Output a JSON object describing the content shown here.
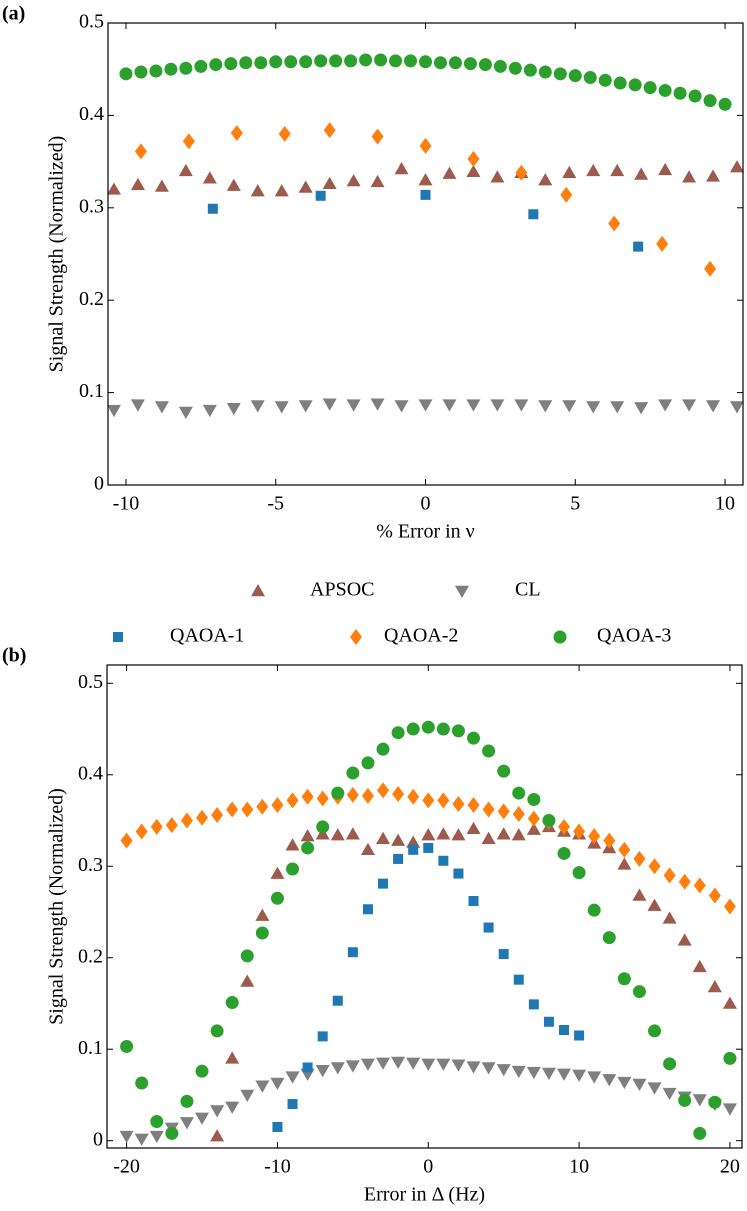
{
  "chart_data": [
    {
      "type": "scatter",
      "label": "(a)",
      "xlabel": "% Error in ν",
      "ylabel": "Signal Strength (Normalized)",
      "xlim": [
        -10.6,
        10.6
      ],
      "ylim": [
        0,
        0.5
      ],
      "xticks": [
        -10,
        -5,
        0,
        5,
        10
      ],
      "yticks": [
        0,
        0.1,
        0.2,
        0.3,
        0.4,
        0.5
      ],
      "series": [
        {
          "name": "APSOC",
          "color": "#9c5b4c",
          "marker": "triangle-up",
          "x": [
            -10.4,
            -9.6,
            -8.8,
            -8,
            -7.2,
            -6.4,
            -5.6,
            -4.8,
            -4,
            -3.2,
            -2.4,
            -1.6,
            -0.8,
            0,
            0.8,
            1.6,
            2.4,
            3.2,
            4,
            4.8,
            5.6,
            6.4,
            7.2,
            8,
            8.8,
            9.6,
            10.4
          ],
          "values": [
            0.32,
            0.325,
            0.323,
            0.34,
            0.332,
            0.324,
            0.318,
            0.318,
            0.322,
            0.326,
            0.329,
            0.328,
            0.342,
            0.33,
            0.337,
            0.339,
            0.333,
            0.338,
            0.33,
            0.338,
            0.34,
            0.34,
            0.336,
            0.341,
            0.333,
            0.334,
            0.344
          ]
        },
        {
          "name": "CL",
          "color": "#7f7f7f",
          "marker": "triangle-down",
          "x": [
            -10.4,
            -9.6,
            -8.8,
            -8,
            -7.2,
            -6.4,
            -5.6,
            -4.8,
            -4,
            -3.2,
            -2.4,
            -1.6,
            -0.8,
            0,
            0.8,
            1.6,
            2.4,
            3.2,
            4,
            4.8,
            5.6,
            6.4,
            7.2,
            8,
            8.8,
            9.6,
            10.4
          ],
          "values": [
            0.081,
            0.087,
            0.085,
            0.079,
            0.081,
            0.083,
            0.086,
            0.085,
            0.086,
            0.088,
            0.087,
            0.088,
            0.086,
            0.087,
            0.087,
            0.087,
            0.087,
            0.087,
            0.086,
            0.086,
            0.085,
            0.085,
            0.084,
            0.087,
            0.087,
            0.086,
            0.085
          ]
        },
        {
          "name": "QAOA-1",
          "color": "#1f77b4",
          "marker": "square",
          "x": [
            -7.1,
            -3.5,
            0,
            3.6,
            7.1
          ],
          "values": [
            0.299,
            0.313,
            0.314,
            0.293,
            0.258
          ]
        },
        {
          "name": "QAOA-2",
          "color": "#ff7f0e",
          "marker": "diamond",
          "x": [
            -9.5,
            -7.9,
            -6.3,
            -4.7,
            -3.2,
            -1.6,
            0,
            1.6,
            3.2,
            4.7,
            6.3,
            7.9,
            9.5
          ],
          "values": [
            0.361,
            0.372,
            0.381,
            0.38,
            0.384,
            0.377,
            0.367,
            0.353,
            0.338,
            0.314,
            0.283,
            0.261,
            0.234
          ]
        },
        {
          "name": "QAOA-3",
          "color": "#2ca02c",
          "marker": "circle",
          "x": [
            -10,
            -9.5,
            -9,
            -8.5,
            -8,
            -7.5,
            -7,
            -6.5,
            -6,
            -5.5,
            -5,
            -4.5,
            -4,
            -3.5,
            -3,
            -2.5,
            -2,
            -1.5,
            -1,
            -0.5,
            0,
            0.5,
            1,
            1.5,
            2,
            2.5,
            3,
            3.5,
            4,
            4.5,
            5,
            5.5,
            6,
            6.5,
            7,
            7.5,
            8,
            8.5,
            9,
            9.5,
            10
          ],
          "values": [
            0.445,
            0.447,
            0.448,
            0.45,
            0.451,
            0.453,
            0.455,
            0.456,
            0.457,
            0.457,
            0.458,
            0.458,
            0.458,
            0.459,
            0.459,
            0.459,
            0.46,
            0.46,
            0.459,
            0.459,
            0.458,
            0.457,
            0.457,
            0.456,
            0.455,
            0.453,
            0.451,
            0.449,
            0.447,
            0.445,
            0.443,
            0.441,
            0.438,
            0.435,
            0.433,
            0.43,
            0.427,
            0.424,
            0.421,
            0.416,
            0.412
          ]
        }
      ]
    },
    {
      "type": "scatter",
      "label": "(b)",
      "xlabel": "Error in Δ (Hz)",
      "ylabel": "Signal Strength (Normalized)",
      "xlim": [
        -21.3,
        20.8
      ],
      "ylim": [
        -0.008,
        0.52
      ],
      "xticks": [
        -20,
        -10,
        0,
        10,
        20
      ],
      "yticks": [
        0,
        0.1,
        0.2,
        0.3,
        0.4,
        0.5
      ],
      "series": [
        {
          "name": "APSOC",
          "color": "#9c5b4c",
          "marker": "triangle-up",
          "x": [
            -14,
            -13,
            -12,
            -11,
            -10,
            -9,
            -8,
            -7,
            -6,
            -5,
            -4,
            -3,
            -2,
            -1,
            0,
            1,
            2,
            3,
            4,
            5,
            6,
            7,
            8,
            9,
            10,
            11,
            12,
            13,
            14,
            15,
            16,
            17,
            18,
            19,
            20
          ],
          "values": [
            0.005,
            0.09,
            0.174,
            0.246,
            0.292,
            0.323,
            0.333,
            0.335,
            0.334,
            0.335,
            0.318,
            0.33,
            0.328,
            0.326,
            0.334,
            0.335,
            0.334,
            0.341,
            0.33,
            0.335,
            0.334,
            0.34,
            0.343,
            0.338,
            0.335,
            0.325,
            0.32,
            0.302,
            0.268,
            0.257,
            0.243,
            0.219,
            0.19,
            0.168,
            0.15
          ]
        },
        {
          "name": "CL",
          "color": "#7f7f7f",
          "marker": "triangle-down",
          "x": [
            -20,
            -19,
            -18,
            -17,
            -16,
            -15,
            -14,
            -13,
            -12,
            -11,
            -10,
            -9,
            -8,
            -7,
            -6,
            -5,
            -4,
            -3,
            -2,
            -1,
            0,
            1,
            2,
            3,
            4,
            5,
            6,
            7,
            8,
            9,
            10,
            11,
            12,
            13,
            14,
            15,
            16,
            17,
            18,
            19,
            20
          ],
          "values": [
            0.005,
            0.002,
            0.005,
            0.014,
            0.02,
            0.025,
            0.033,
            0.037,
            0.05,
            0.06,
            0.063,
            0.07,
            0.073,
            0.077,
            0.08,
            0.082,
            0.084,
            0.085,
            0.086,
            0.085,
            0.084,
            0.084,
            0.083,
            0.081,
            0.08,
            0.078,
            0.076,
            0.075,
            0.074,
            0.073,
            0.072,
            0.07,
            0.067,
            0.064,
            0.062,
            0.058,
            0.052,
            0.048,
            0.045,
            0.04,
            0.035
          ]
        },
        {
          "name": "QAOA-1",
          "color": "#1f77b4",
          "marker": "square",
          "x": [
            -10,
            -9,
            -8,
            -7,
            -6,
            -5,
            -4,
            -3,
            -2,
            -1,
            0,
            1,
            2,
            3,
            4,
            5,
            6,
            7,
            8,
            9,
            10
          ],
          "values": [
            0.015,
            0.04,
            0.08,
            0.114,
            0.153,
            0.206,
            0.253,
            0.281,
            0.308,
            0.318,
            0.32,
            0.306,
            0.292,
            0.262,
            0.233,
            0.204,
            0.176,
            0.149,
            0.13,
            0.121,
            0.115
          ]
        },
        {
          "name": "QAOA-2",
          "color": "#ff7f0e",
          "marker": "diamond",
          "x": [
            -20,
            -19,
            -18,
            -17,
            -16,
            -15,
            -14,
            -13,
            -12,
            -11,
            -10,
            -9,
            -8,
            -7,
            -6,
            -5,
            -4,
            -3,
            -2,
            -1,
            0,
            1,
            2,
            3,
            4,
            5,
            6,
            7,
            8,
            9,
            10,
            11,
            12,
            13,
            14,
            15,
            16,
            17,
            18,
            19,
            20
          ],
          "values": [
            0.328,
            0.338,
            0.343,
            0.345,
            0.35,
            0.353,
            0.356,
            0.362,
            0.362,
            0.365,
            0.367,
            0.372,
            0.376,
            0.374,
            0.376,
            0.378,
            0.377,
            0.383,
            0.379,
            0.376,
            0.372,
            0.372,
            0.368,
            0.367,
            0.362,
            0.36,
            0.357,
            0.352,
            0.349,
            0.343,
            0.338,
            0.333,
            0.328,
            0.318,
            0.308,
            0.3,
            0.29,
            0.283,
            0.279,
            0.268,
            0.256
          ]
        },
        {
          "name": "QAOA-3",
          "color": "#2ca02c",
          "marker": "circle",
          "x": [
            -20,
            -19,
            -18,
            -17,
            -16,
            -15,
            -14,
            -13,
            -12,
            -11,
            -10,
            -9,
            -8,
            -7,
            -6,
            -5,
            -4,
            -3,
            -2,
            -1,
            0,
            1,
            2,
            3,
            4,
            5,
            6,
            7,
            8,
            9,
            10,
            11,
            12,
            13,
            14,
            15,
            16,
            17,
            18,
            19,
            20
          ],
          "values": [
            0.103,
            0.063,
            0.021,
            0.008,
            0.043,
            0.076,
            0.12,
            0.151,
            0.202,
            0.227,
            0.265,
            0.297,
            0.32,
            0.343,
            0.38,
            0.402,
            0.413,
            0.428,
            0.446,
            0.45,
            0.452,
            0.45,
            0.448,
            0.44,
            0.426,
            0.404,
            0.38,
            0.373,
            0.35,
            0.314,
            0.293,
            0.252,
            0.222,
            0.177,
            0.163,
            0.12,
            0.084,
            0.044,
            0.008,
            0.042,
            0.09
          ]
        }
      ]
    }
  ]
}
